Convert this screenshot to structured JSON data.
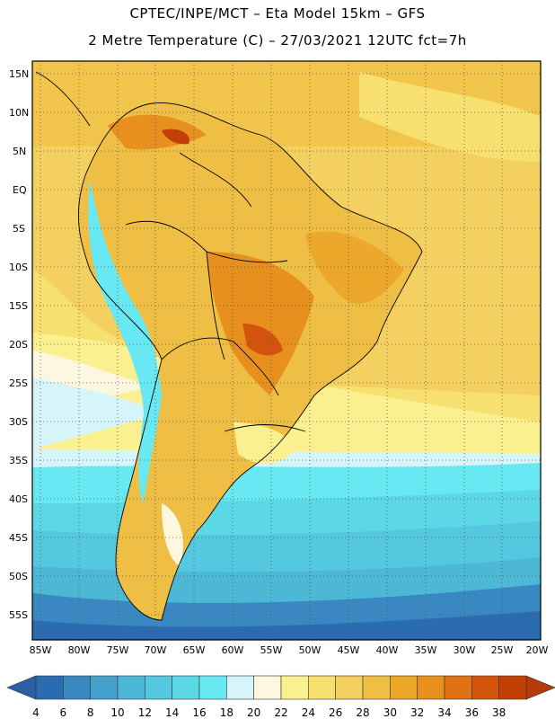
{
  "header": {
    "line1": "CPTEC/INPE/MCT –  Eta Model 15km – GFS",
    "line2": "2 Metre Temperature (C) – 27/03/2021 12UTC fct=7h"
  },
  "map": {
    "lat_labels": [
      "15N",
      "10N",
      "5N",
      "EQ",
      "5S",
      "10S",
      "15S",
      "20S",
      "25S",
      "30S",
      "35S",
      "40S",
      "45S",
      "50S",
      "55S"
    ],
    "lon_labels": [
      "85W",
      "80W",
      "75W",
      "70W",
      "65W",
      "60W",
      "55W",
      "50W",
      "45W",
      "40W",
      "35W",
      "30W",
      "25W",
      "20W"
    ]
  },
  "colorbar": {
    "labels": [
      "4",
      "6",
      "8",
      "10",
      "12",
      "14",
      "16",
      "18",
      "20",
      "22",
      "24",
      "26",
      "28",
      "30",
      "32",
      "34",
      "36",
      "38"
    ],
    "colors": [
      "#2b6cb0",
      "#3a88c2",
      "#45a1cc",
      "#4db7d6",
      "#54c8de",
      "#5cd7e6",
      "#68e8f2",
      "#d6f5fb",
      "#fdf7e0",
      "#fbf08f",
      "#f7e070",
      "#f3d060",
      "#efbf45",
      "#eca82b",
      "#e8901e",
      "#e07214",
      "#d3540d",
      "#c23f06"
    ],
    "low_color": "#2a5fa8",
    "high_color": "#b5390a"
  }
}
